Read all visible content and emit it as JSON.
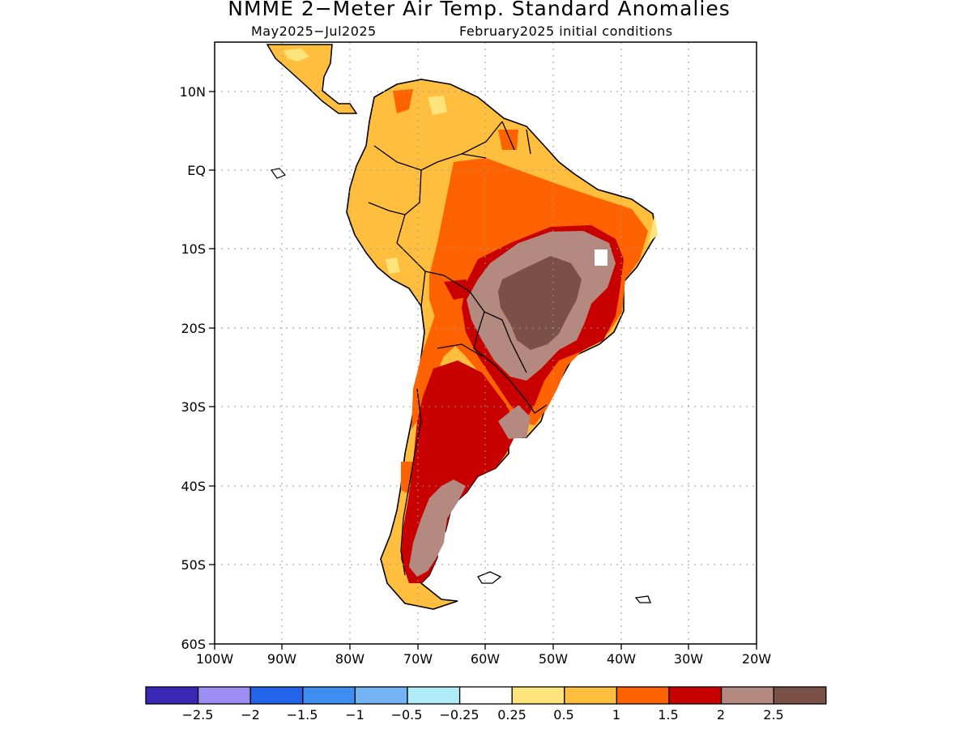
{
  "title": "NMME 2-Meter Air Temp. Standard Anomalies",
  "subtitle_left": "May2025-Jul2025",
  "subtitle_right": "February2025 initial conditions",
  "colors": {
    "below_minus_2_5": "#3b27b5",
    "minus_2_5_to_minus_2": "#9d8cf2",
    "minus_2_to_minus_1_5": "#2365e8",
    "minus_1_5_to_minus_1": "#3d8ef0",
    "minus_1_to_minus_0_5": "#74b4f5",
    "minus_0_5_to_minus_0_25": "#b0ecf8",
    "neutral": "#ffffff",
    "0_25_to_0_5": "#ffe37b",
    "0_5_to_1": "#ffbe3d",
    "1_to_1_5": "#ff6200",
    "1_5_to_2": "#c80000",
    "2_to_2_5": "#b48a80",
    "above_2_5": "#7b5046",
    "land_outline": "#000000"
  },
  "map": {
    "lat_labels": [
      "10N",
      "EQ",
      "10S",
      "20S",
      "30S",
      "40S",
      "50S",
      "60S"
    ],
    "lon_labels": [
      "100W",
      "90W",
      "80W",
      "70W",
      "60W",
      "50W",
      "40W",
      "30W",
      "20W"
    ]
  },
  "colorbar": {
    "labels": [
      "-2.5",
      "-2",
      "-1.5",
      "-1",
      "-0.5",
      "-0.25",
      "0.25",
      "0.5",
      "1",
      "1.5",
      "2",
      "2.5"
    ],
    "swatch_keys": [
      "below_minus_2_5",
      "minus_2_5_to_minus_2",
      "minus_2_to_minus_1_5",
      "minus_1_5_to_minus_1",
      "minus_1_to_minus_0_5",
      "minus_0_5_to_minus_0_25",
      "neutral",
      "0_25_to_0_5",
      "0_5_to_1",
      "1_to_1_5",
      "1_5_to_2",
      "2_to_2_5",
      "above_2_5"
    ]
  }
}
